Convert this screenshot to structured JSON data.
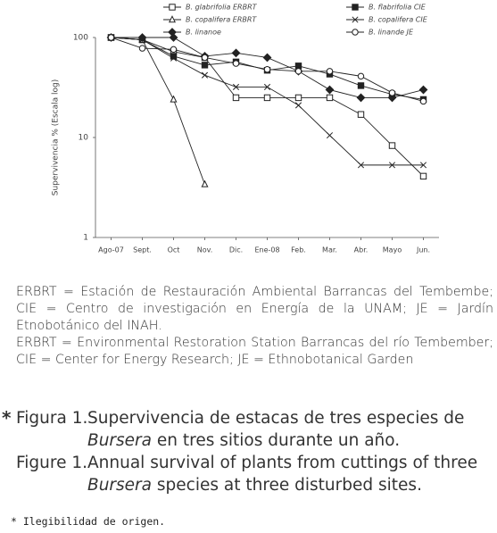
{
  "chart_data": {
    "type": "line",
    "y_label": "Supervivencia % (Escala log)",
    "categories": [
      "Ago-07",
      "Sept.",
      "Oct",
      "Nov.",
      "Dic.",
      "Ene-08",
      "Feb.",
      "Mar.",
      "Abr.",
      "Mayo",
      "Jun."
    ],
    "ylim": [
      1,
      100
    ],
    "yticks": [
      1,
      10,
      100
    ],
    "log_scale": true,
    "grid": false,
    "legend": "top",
    "series": [
      {
        "name": "B. glabrifolia ERBRT",
        "color": "#222222",
        "marker": "square-open",
        "values": [
          100,
          95,
          72,
          63,
          25,
          25,
          25,
          25,
          17,
          8.3,
          4.1
        ]
      },
      {
        "name": "B. flabrifolia CIE",
        "color": "#222222",
        "marker": "square-filled",
        "values": [
          100,
          95,
          65,
          53,
          57,
          47,
          52,
          43,
          33,
          27,
          24
        ]
      },
      {
        "name": "B. copalifera ERBRT",
        "color": "#222222",
        "marker": "triangle-open",
        "values": [
          100,
          95,
          24,
          3.4,
          null,
          null,
          null,
          null,
          null,
          null,
          null
        ]
      },
      {
        "name": "B. copalifera CIE",
        "color": "#222222",
        "marker": "cross",
        "values": [
          100,
          95,
          62,
          42,
          32,
          32,
          21,
          10.5,
          5.3,
          5.3,
          5.3
        ]
      },
      {
        "name": "B. linanoe",
        "color": "#222222",
        "marker": "diamond-filled",
        "values": [
          100,
          100,
          100,
          65,
          70,
          63,
          46,
          30,
          25,
          25,
          30
        ]
      },
      {
        "name": "B. linande JE",
        "color": "#222222",
        "marker": "circle-open",
        "values": [
          100,
          78,
          76,
          63,
          55,
          48,
          46,
          46,
          41,
          28,
          23
        ]
      }
    ]
  },
  "notes": [
    "ERBRT = Estación de Restauración Ambiental Barrancas del Tembembe; CIE = Centro de investigación en Energía de la UNAM; JE = Jardín Etnobotánico del INAH.",
    "ERBRT = Environmental Restoration Station Barrancas del río Tembember; CIE = Center for Energy Research; JE = Ethnobotanical Garden"
  ],
  "caption": {
    "asterisk": "*",
    "es": {
      "label": "Figura 1.",
      "before": "Supervivencia de estacas de tres especies de",
      "italic": "Bursera",
      "after": "en tres sitios durante un año."
    },
    "en": {
      "label": "Figure 1.",
      "before": "Annual survival of plants from cuttings of three",
      "italic": "Bursera",
      "after": "species at three disturbed sites."
    }
  },
  "footnote": "* Ilegibilidad de origen."
}
